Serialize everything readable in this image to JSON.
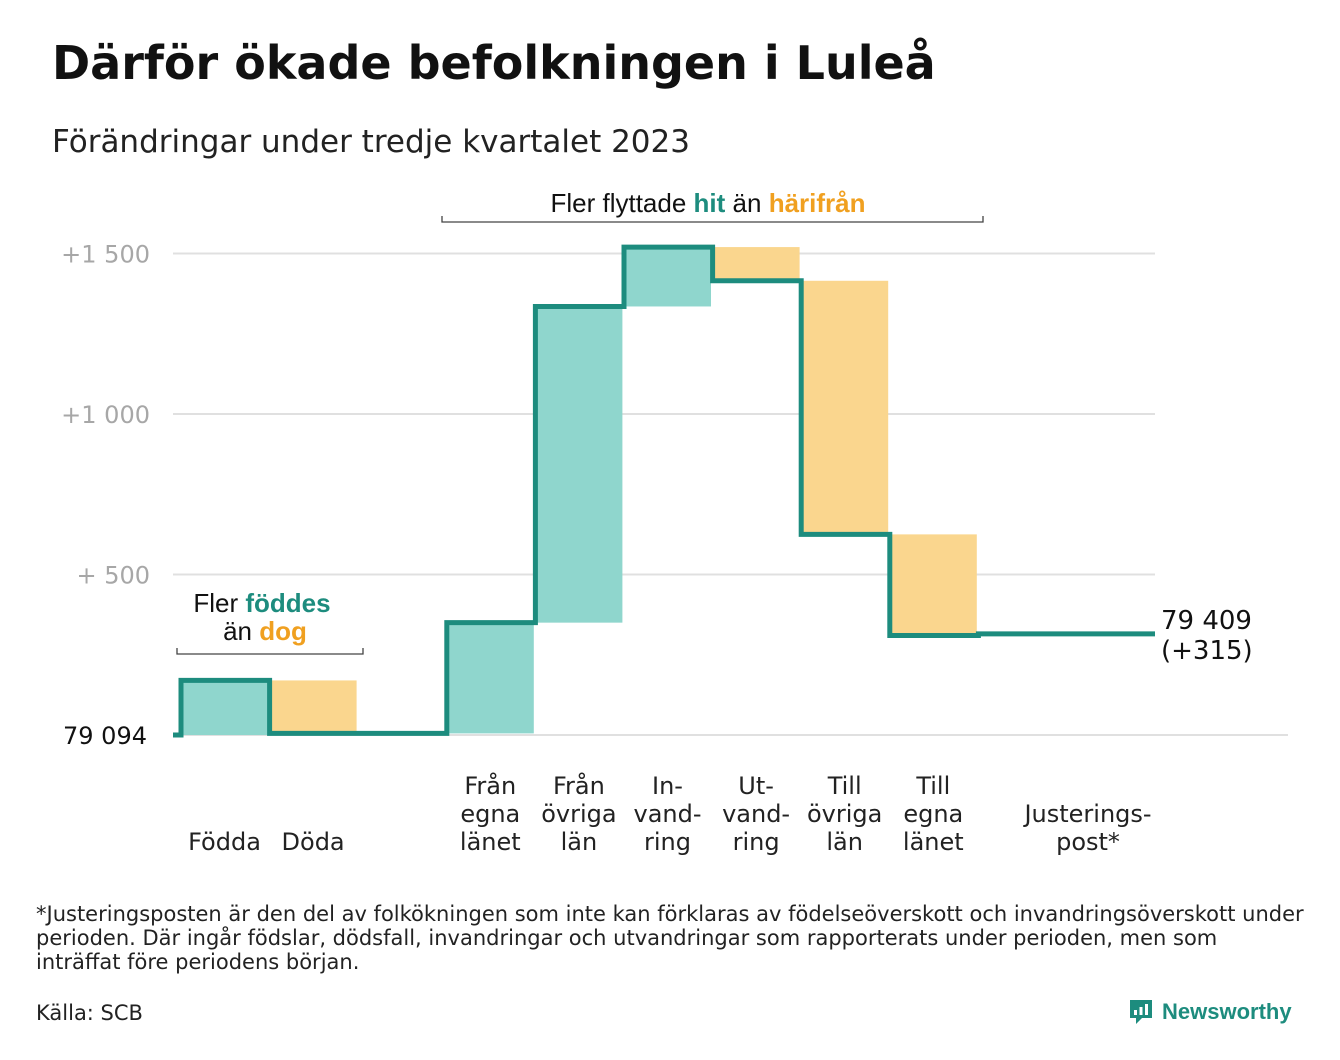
{
  "title": "Därför ökade befolkningen i Luleå",
  "subtitle": "Förändringar under tredje kvartalet 2023",
  "colors": {
    "increase": "#8fd6cd",
    "decrease": "#fad68e",
    "line": "#1d8c7e",
    "accent_orange": "#f0a020",
    "grid": "#e0e0e0",
    "tick": "#a7a7a7"
  },
  "chart_data": {
    "type": "waterfall",
    "base_value": "79 094",
    "ylim": [
      0,
      1540
    ],
    "yticks": [
      {
        "value": 500,
        "label": "+  500"
      },
      {
        "value": 1000,
        "label": "+1  000"
      },
      {
        "value": 1500,
        "label": "+1  500"
      }
    ],
    "bars": [
      {
        "label": [
          "Födda"
        ],
        "start": 0,
        "end": 170,
        "kind": "increase"
      },
      {
        "label": [
          "Döda"
        ],
        "start": 170,
        "end": 5,
        "kind": "decrease"
      },
      {
        "label": [],
        "start": 5,
        "end": 5,
        "kind": "none"
      },
      {
        "label": [
          "Från",
          "egna",
          "länet"
        ],
        "start": 5,
        "end": 350,
        "kind": "increase"
      },
      {
        "label": [
          "Från",
          "övriga",
          "län"
        ],
        "start": 350,
        "end": 1335,
        "kind": "increase"
      },
      {
        "label": [
          "In-",
          "vand-",
          "ring"
        ],
        "start": 1335,
        "end": 1520,
        "kind": "increase"
      },
      {
        "label": [
          "Ut-",
          "vand-",
          "ring"
        ],
        "start": 1520,
        "end": 1415,
        "kind": "decrease"
      },
      {
        "label": [
          "Till",
          "övriga",
          "län"
        ],
        "start": 1415,
        "end": 625,
        "kind": "decrease"
      },
      {
        "label": [
          "Till",
          "egna",
          "länet"
        ],
        "start": 625,
        "end": 310,
        "kind": "decrease"
      },
      {
        "label": [
          "Justerings-",
          "post*"
        ],
        "start": 310,
        "end": 315,
        "kind": "none"
      }
    ],
    "end_label": [
      "79 409",
      "(+315)"
    ],
    "annotations": [
      {
        "parts": [
          {
            "text": "Fler flyttade",
            "role": "plain"
          },
          {
            "text": "hit",
            "role": "increase"
          },
          {
            "text": "än",
            "role": "plain"
          },
          {
            "text": "härifrån",
            "role": "decrease"
          }
        ]
      },
      {
        "lines": [
          [
            {
              "text": "Fler",
              "role": "plain"
            },
            {
              "text": "föddes",
              "role": "increase"
            }
          ],
          [
            {
              "text": "än",
              "role": "plain"
            },
            {
              "text": "dog",
              "role": "decrease"
            }
          ]
        ]
      }
    ]
  },
  "footnote": "*Justeringsposten är den del av folkökningen som inte kan förklaras av födelseöverskott och invandringsöverskott under perioden. Där ingår födslar, dödsfall, invandringar och utvandringar som rapporterats under perioden, men som inträffat före periodens början.",
  "source": "Källa: SCB",
  "brand": {
    "name": "Newsworthy",
    "icon": "newsworthy-logo-icon"
  }
}
